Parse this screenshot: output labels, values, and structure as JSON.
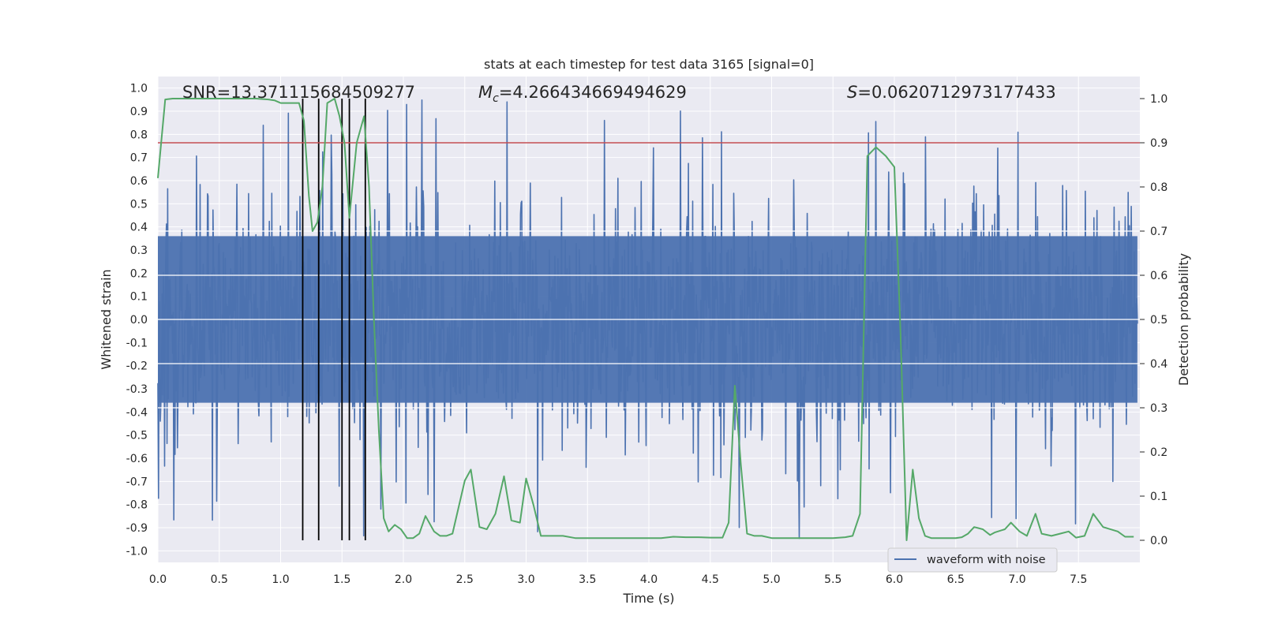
{
  "chart_data": {
    "type": "line",
    "title": "stats at each timestep for test data 3165 [signal=0]",
    "xlabel": "Time (s)",
    "ylabel_left": "Whitened strain",
    "ylabel_right": "Detection probability",
    "xlim": [
      0.0,
      8.0
    ],
    "ylim_left": [
      -1.05,
      1.05
    ],
    "ylim_right": [
      -0.05,
      1.05
    ],
    "x_ticks": [
      "0.0",
      "0.5",
      "1.0",
      "1.5",
      "2.0",
      "2.5",
      "3.0",
      "3.5",
      "4.0",
      "4.5",
      "5.0",
      "5.5",
      "6.0",
      "6.5",
      "7.0",
      "7.5"
    ],
    "y_left_ticks": [
      "1.0",
      "0.9",
      "0.8",
      "0.7",
      "0.6",
      "0.5",
      "0.4",
      "0.3",
      "0.2",
      "0.1",
      "0.0",
      "-0.1",
      "-0.2",
      "-0.3",
      "-0.4",
      "-0.5",
      "-0.6",
      "-0.7",
      "-0.8",
      "-0.9",
      "-1.0"
    ],
    "y_right_ticks": [
      "1.0",
      "0.9",
      "0.8",
      "0.7",
      "0.6",
      "0.5",
      "0.4",
      "0.3",
      "0.2",
      "0.1",
      "0.0"
    ],
    "annotations": {
      "snr": "SNR=13.371115684509277",
      "mc": "=4.266434669494629",
      "s": "=0.0620712973177433",
      "mc_symbol": "M",
      "mc_subscript": "c",
      "s_symbol": "S"
    },
    "legend": {
      "label": "waveform with noise",
      "position": "lower-right"
    },
    "threshold": {
      "value": 0.9,
      "axis": "right",
      "color": "#c44e52"
    },
    "vertical_markers": [
      1.18,
      1.31,
      1.5,
      1.56,
      1.69
    ],
    "waveform": {
      "name": "waveform with noise",
      "color": "#4c72b0",
      "typical_amplitude": 0.45,
      "max_amplitude": 1.0,
      "samples": 1600
    },
    "probability_series": {
      "name": "detection probability",
      "color": "#55a868",
      "x": [
        0.0,
        0.06,
        0.12,
        0.2,
        0.3,
        0.4,
        0.5,
        0.6,
        0.7,
        0.8,
        0.9,
        0.95,
        1.0,
        1.05,
        1.1,
        1.15,
        1.19,
        1.23,
        1.26,
        1.3,
        1.34,
        1.38,
        1.44,
        1.48,
        1.52,
        1.56,
        1.62,
        1.68,
        1.72,
        1.76,
        1.8,
        1.84,
        1.88,
        1.93,
        1.98,
        2.03,
        2.08,
        2.13,
        2.18,
        2.25,
        2.3,
        2.35,
        2.4,
        2.5,
        2.55,
        2.62,
        2.68,
        2.75,
        2.82,
        2.88,
        2.95,
        3.0,
        3.06,
        3.12,
        3.2,
        3.3,
        3.4,
        3.5,
        3.6,
        3.7,
        3.8,
        3.9,
        4.0,
        4.1,
        4.2,
        4.3,
        4.4,
        4.5,
        4.6,
        4.65,
        4.7,
        4.75,
        4.8,
        4.86,
        4.92,
        5.0,
        5.1,
        5.2,
        5.3,
        5.4,
        5.5,
        5.6,
        5.66,
        5.72,
        5.78,
        5.85,
        5.93,
        6.0,
        6.05,
        6.1,
        6.15,
        6.2,
        6.25,
        6.3,
        6.4,
        6.5,
        6.55,
        6.6,
        6.65,
        6.72,
        6.78,
        6.82,
        6.9,
        6.95,
        7.02,
        7.08,
        7.15,
        7.2,
        7.28,
        7.35,
        7.42,
        7.48,
        7.55,
        7.62,
        7.7,
        7.82,
        7.88,
        7.95
      ],
      "y": [
        0.82,
        0.998,
        1.0,
        1.0,
        1.0,
        1.0,
        1.0,
        1.0,
        1.0,
        1.0,
        0.998,
        0.996,
        0.99,
        0.99,
        0.99,
        0.99,
        0.95,
        0.78,
        0.7,
        0.72,
        0.8,
        0.99,
        1.0,
        0.96,
        0.9,
        0.73,
        0.9,
        0.96,
        0.8,
        0.5,
        0.25,
        0.05,
        0.02,
        0.035,
        0.025,
        0.005,
        0.005,
        0.015,
        0.055,
        0.02,
        0.01,
        0.01,
        0.015,
        0.135,
        0.16,
        0.03,
        0.025,
        0.06,
        0.145,
        0.045,
        0.04,
        0.14,
        0.08,
        0.01,
        0.01,
        0.01,
        0.005,
        0.005,
        0.005,
        0.005,
        0.005,
        0.005,
        0.005,
        0.005,
        0.008,
        0.007,
        0.007,
        0.006,
        0.006,
        0.04,
        0.35,
        0.17,
        0.015,
        0.01,
        0.01,
        0.005,
        0.005,
        0.005,
        0.005,
        0.005,
        0.005,
        0.007,
        0.01,
        0.06,
        0.87,
        0.89,
        0.87,
        0.845,
        0.47,
        0.0,
        0.16,
        0.05,
        0.01,
        0.005,
        0.005,
        0.005,
        0.007,
        0.015,
        0.03,
        0.025,
        0.012,
        0.018,
        0.025,
        0.04,
        0.02,
        0.01,
        0.06,
        0.015,
        0.01,
        0.015,
        0.02,
        0.006,
        0.01,
        0.06,
        0.03,
        0.02,
        0.008,
        0.008
      ]
    }
  }
}
